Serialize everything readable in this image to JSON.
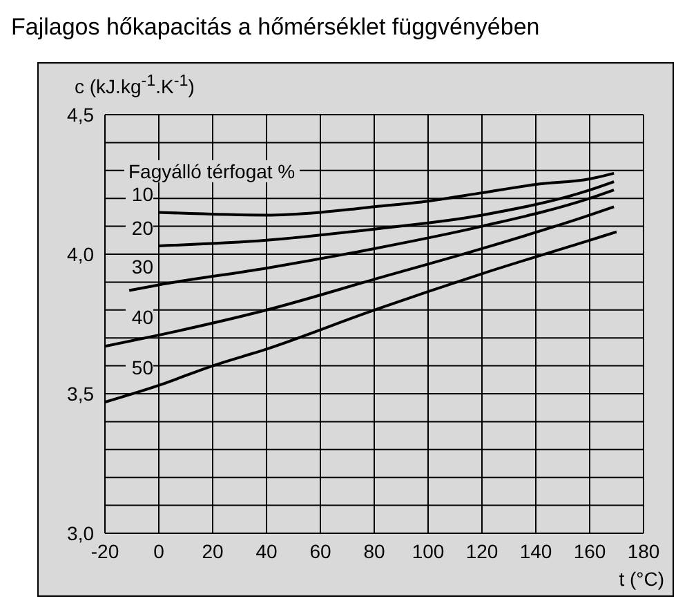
{
  "chart_data": {
    "type": "line",
    "title": "Fajlagos hőkapacitás a hőmérséklet függvényében",
    "ylabel": "c (kJ.kg$^{-1}$.K$^{-1}$)",
    "xlabel": "t (°C)",
    "legend_title": "Fagyálló térfogat %",
    "xlim": [
      -20,
      180
    ],
    "xticks": [
      -20,
      0,
      20,
      40,
      60,
      80,
      100,
      120,
      140,
      160,
      180
    ],
    "ylim": [
      3.0,
      4.5
    ],
    "yticks": [
      {
        "value": 3.0,
        "label": "3,0"
      },
      {
        "value": 3.1,
        "label": null
      },
      {
        "value": 3.2,
        "label": null
      },
      {
        "value": 3.3,
        "label": null
      },
      {
        "value": 3.4,
        "label": null
      },
      {
        "value": 3.5,
        "label": "3,5"
      },
      {
        "value": 3.6,
        "label": null
      },
      {
        "value": 3.7,
        "label": null
      },
      {
        "value": 3.8,
        "label": null
      },
      {
        "value": 3.9,
        "label": null
      },
      {
        "value": 4.0,
        "label": "4,0"
      },
      {
        "value": 4.1,
        "label": null
      },
      {
        "value": 4.2,
        "label": null
      },
      {
        "value": 4.3,
        "label": null
      },
      {
        "value": 4.4,
        "label": null
      },
      {
        "value": 4.5,
        "label": "4,5"
      }
    ],
    "grid": true,
    "marker": "none",
    "series": [
      {
        "name": "10",
        "color": "#000000",
        "x": [
          0,
          40,
          60,
          80,
          100,
          120,
          140,
          160,
          169
        ],
        "values": [
          4.15,
          4.14,
          4.15,
          4.17,
          4.19,
          4.22,
          4.25,
          4.27,
          4.29
        ]
      },
      {
        "name": "20",
        "color": "#000000",
        "x": [
          0,
          40,
          80,
          120,
          160,
          169
        ],
        "values": [
          4.03,
          4.05,
          4.09,
          4.14,
          4.23,
          4.26
        ]
      },
      {
        "name": "30",
        "color": "#000000",
        "x": [
          -11,
          0,
          40,
          80,
          120,
          160,
          169
        ],
        "values": [
          3.87,
          3.89,
          3.95,
          4.02,
          4.1,
          4.2,
          4.23
        ]
      },
      {
        "name": "40",
        "color": "#000000",
        "x": [
          -20,
          0,
          40,
          80,
          120,
          160,
          169
        ],
        "values": [
          3.67,
          3.71,
          3.8,
          3.91,
          4.02,
          4.14,
          4.17
        ]
      },
      {
        "name": "50",
        "color": "#000000",
        "x": [
          -20,
          0,
          20,
          40,
          80,
          120,
          160,
          170
        ],
        "values": [
          3.47,
          3.53,
          3.6,
          3.66,
          3.8,
          3.93,
          4.05,
          4.08
        ]
      }
    ]
  }
}
